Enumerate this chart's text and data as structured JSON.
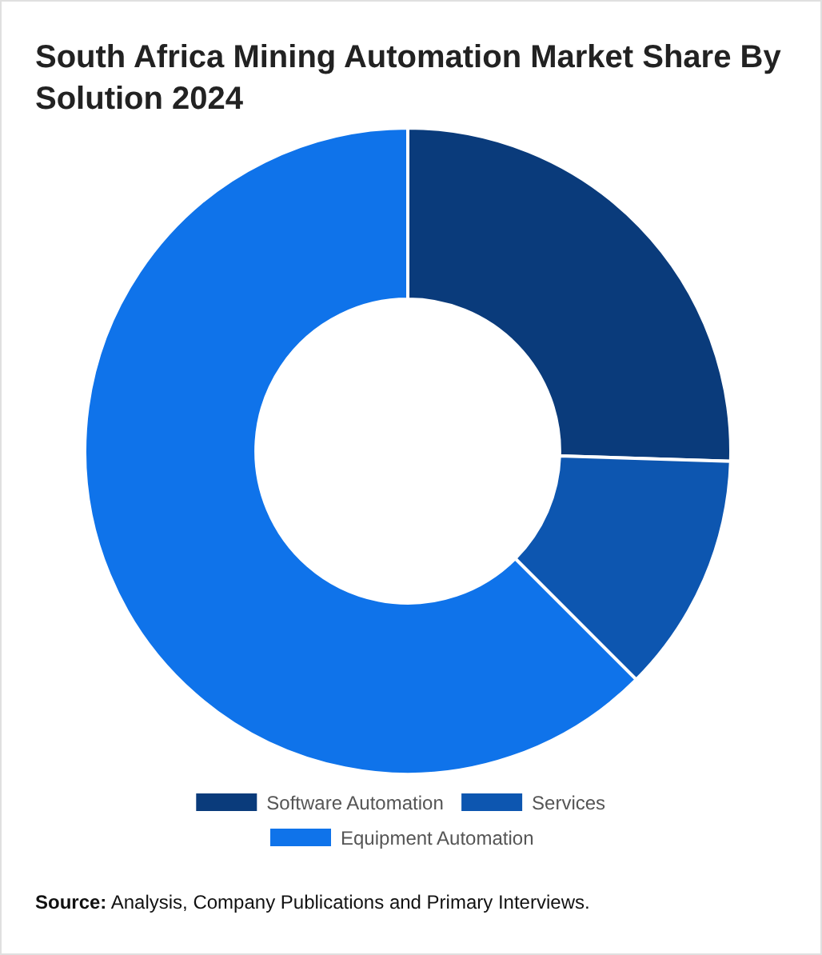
{
  "chart_data": {
    "type": "donut",
    "title": "South Africa Mining Automation Market Share By Solution 2024",
    "categories": [
      "Software Automation",
      "Services",
      "Equipment Automation"
    ],
    "values": [
      25.5,
      12,
      62.5
    ],
    "colors": [
      "#0a3b7b",
      "#0d56b0",
      "#0f73ea"
    ],
    "legend": "bottom",
    "annotations": [
      "Source: Analysis, Company Publications and Primary Interviews."
    ]
  }
}
